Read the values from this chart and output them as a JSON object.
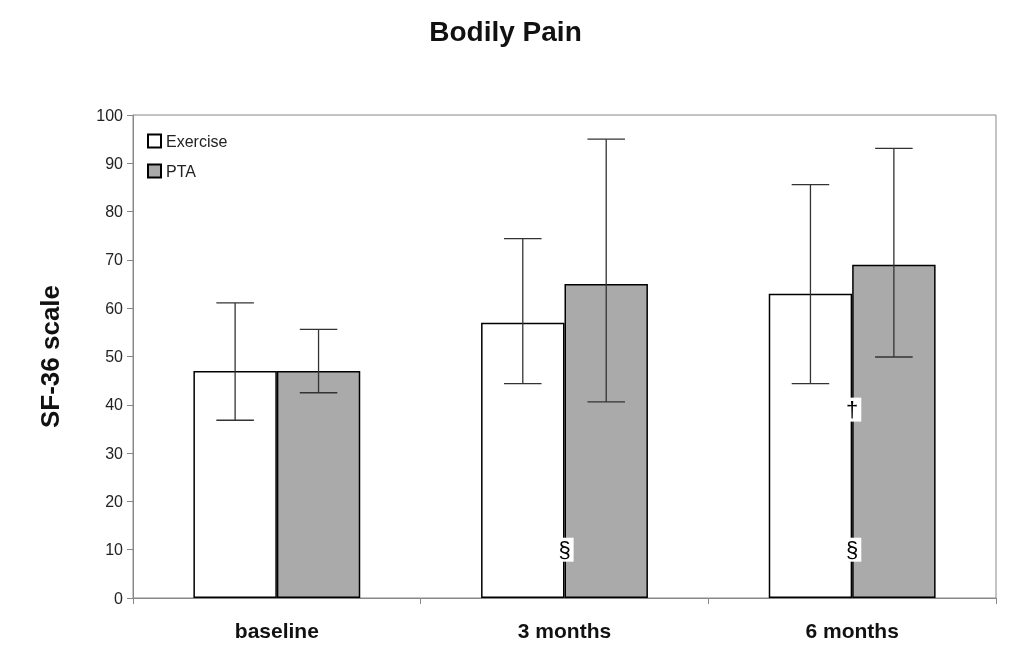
{
  "chart_data": {
    "type": "bar",
    "title": "Bodily Pain",
    "ylabel": "SF-36 scale",
    "categories": [
      "baseline",
      "3 months",
      "6 months"
    ],
    "series": [
      {
        "name": "Exercise",
        "color": "#ffffff",
        "values": [
          47,
          57,
          63
        ],
        "errors": [
          [
            36.8,
            61.1
          ],
          [
            44.4,
            74.4
          ],
          [
            44.4,
            85.6
          ]
        ]
      },
      {
        "name": "PTA",
        "color": "#aaaaaa",
        "values": [
          47,
          65,
          69
        ],
        "errors": [
          [
            42.5,
            55.6
          ],
          [
            40.6,
            95
          ],
          [
            49.9,
            93.1
          ]
        ]
      }
    ],
    "ylim": [
      0,
      100
    ],
    "yticks": [
      0,
      10,
      20,
      30,
      40,
      50,
      60,
      70,
      80,
      90,
      100
    ],
    "grid": false,
    "legend": "top left",
    "annotations": [
      {
        "text": "§",
        "x": "3 months",
        "y": 10
      },
      {
        "text": "§",
        "x": "6 months",
        "y": 10
      },
      {
        "text": "†",
        "x": "6 months",
        "y": 39
      }
    ]
  }
}
